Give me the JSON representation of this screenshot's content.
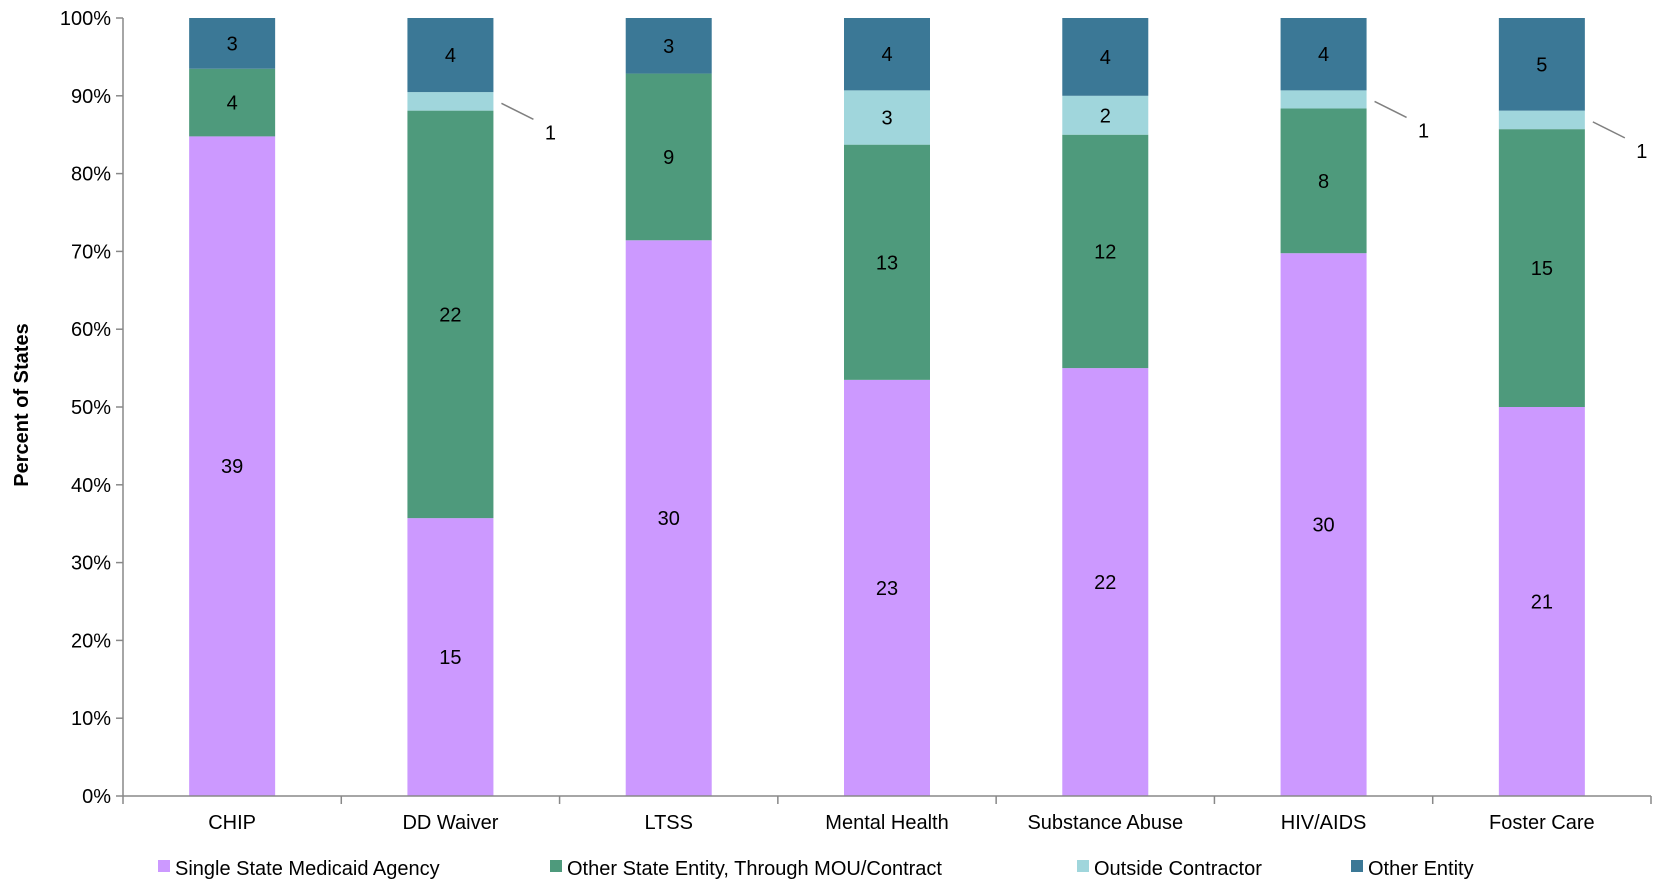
{
  "chart_data": {
    "type": "bar",
    "stacked": true,
    "normalized_percent": true,
    "title": "",
    "xlabel": "",
    "ylabel": "Percent of States",
    "ylim": [
      0,
      100
    ],
    "y_ticks": [
      "0%",
      "10%",
      "20%",
      "30%",
      "40%",
      "50%",
      "60%",
      "70%",
      "80%",
      "90%",
      "100%"
    ],
    "grid": false,
    "legend_position": "bottom",
    "categories": [
      "CHIP",
      "DD Waiver",
      "LTSS",
      "Mental Health",
      "Substance Abuse",
      "HIV/AIDS",
      "Foster Care"
    ],
    "series": [
      {
        "name": "Single State Medicaid Agency",
        "color": "#cc99ff",
        "values": [
          39,
          15,
          30,
          23,
          22,
          30,
          21
        ]
      },
      {
        "name": "Other State Entity, Through MOU/Contract",
        "color": "#4e9a7c",
        "values": [
          4,
          22,
          9,
          13,
          12,
          8,
          15
        ]
      },
      {
        "name": "Outside Contractor",
        "color": "#a0d6dc",
        "values": [
          0,
          1,
          0,
          3,
          2,
          1,
          1
        ]
      },
      {
        "name": "Other Entity",
        "color": "#3b7896",
        "values": [
          3,
          4,
          3,
          4,
          4,
          4,
          5
        ]
      }
    ]
  }
}
